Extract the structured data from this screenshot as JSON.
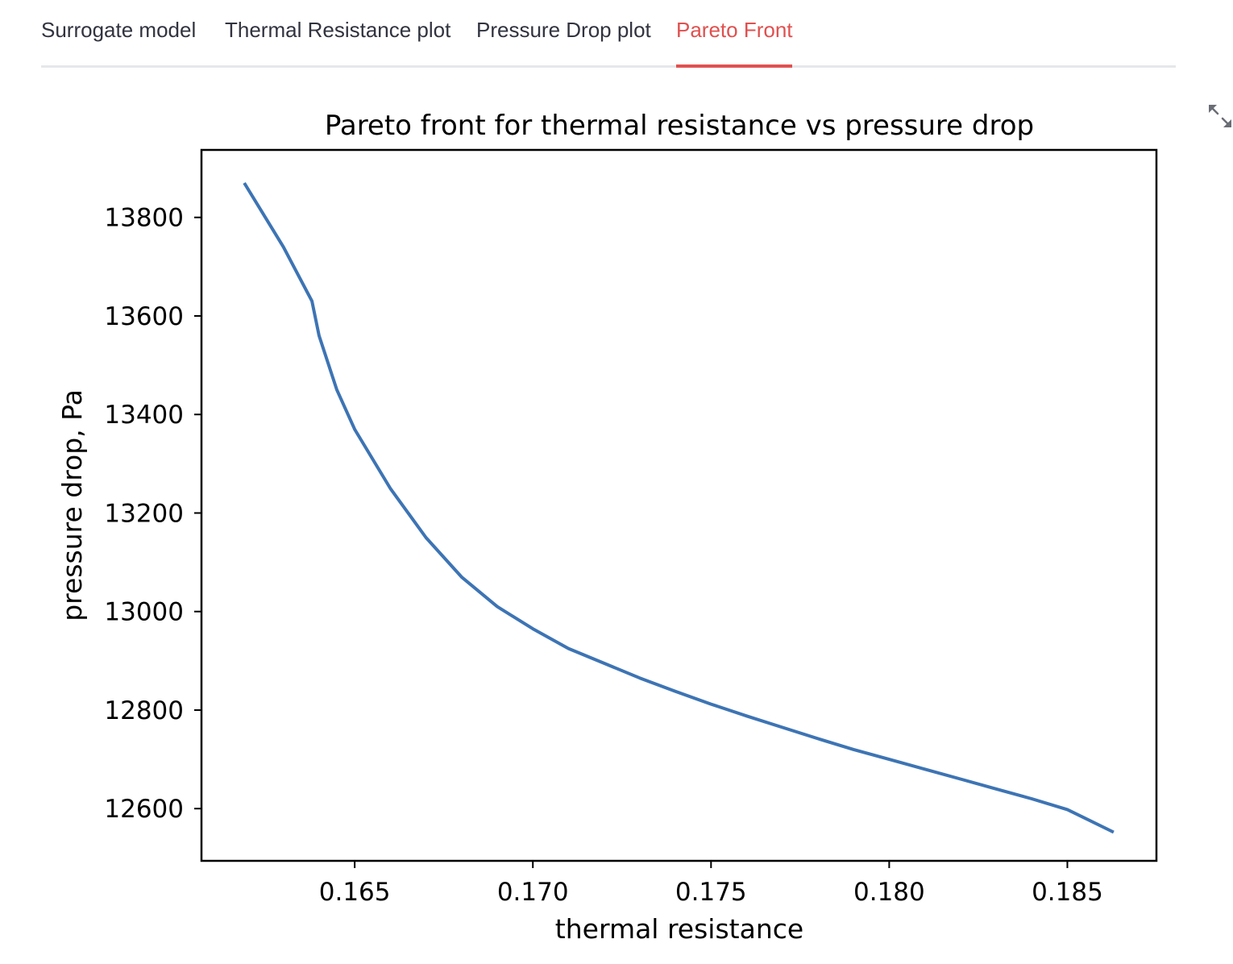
{
  "tabs": [
    {
      "label": "Surrogate model",
      "active": false
    },
    {
      "label": "Thermal Resistance plot",
      "active": false
    },
    {
      "label": "Pressure Drop plot",
      "active": false
    },
    {
      "label": "Pareto Front",
      "active": true
    }
  ],
  "toolbar": {
    "fullscreen_icon": "expand-arrows-icon"
  },
  "colors": {
    "accent": "#e0504f",
    "series": "#3d74b4",
    "text": "#31333f",
    "divider": "#e6e7ea"
  },
  "chart_data": {
    "type": "line",
    "title": "Pareto front for thermal resistance vs pressure drop",
    "xlabel": "thermal resistance",
    "ylabel": "pressure drop, Pa",
    "xlim": [
      0.1607,
      0.1875
    ],
    "ylim": [
      12494,
      13937
    ],
    "xticks": [
      0.165,
      0.17,
      0.175,
      0.18,
      0.185
    ],
    "xtick_labels": [
      "0.165",
      "0.170",
      "0.175",
      "0.180",
      "0.185"
    ],
    "yticks": [
      12600,
      12800,
      13000,
      13200,
      13400,
      13600,
      13800
    ],
    "ytick_labels": [
      "12600",
      "12800",
      "13000",
      "13200",
      "13400",
      "13600",
      "13800"
    ],
    "grid": false,
    "legend": "none",
    "series": [
      {
        "x": [
          0.1619,
          0.163,
          0.1638,
          0.164,
          0.1645,
          0.165,
          0.166,
          0.167,
          0.168,
          0.169,
          0.17,
          0.171,
          0.172,
          0.173,
          0.174,
          0.175,
          0.176,
          0.177,
          0.178,
          0.179,
          0.18,
          0.181,
          0.182,
          0.183,
          0.184,
          0.185,
          0.1863
        ],
        "y": [
          13870,
          13740,
          13630,
          13560,
          13450,
          13370,
          13250,
          13150,
          13070,
          13010,
          12965,
          12925,
          12895,
          12865,
          12838,
          12812,
          12788,
          12765,
          12742,
          12720,
          12700,
          12680,
          12660,
          12640,
          12620,
          12598,
          12552
        ]
      }
    ]
  }
}
